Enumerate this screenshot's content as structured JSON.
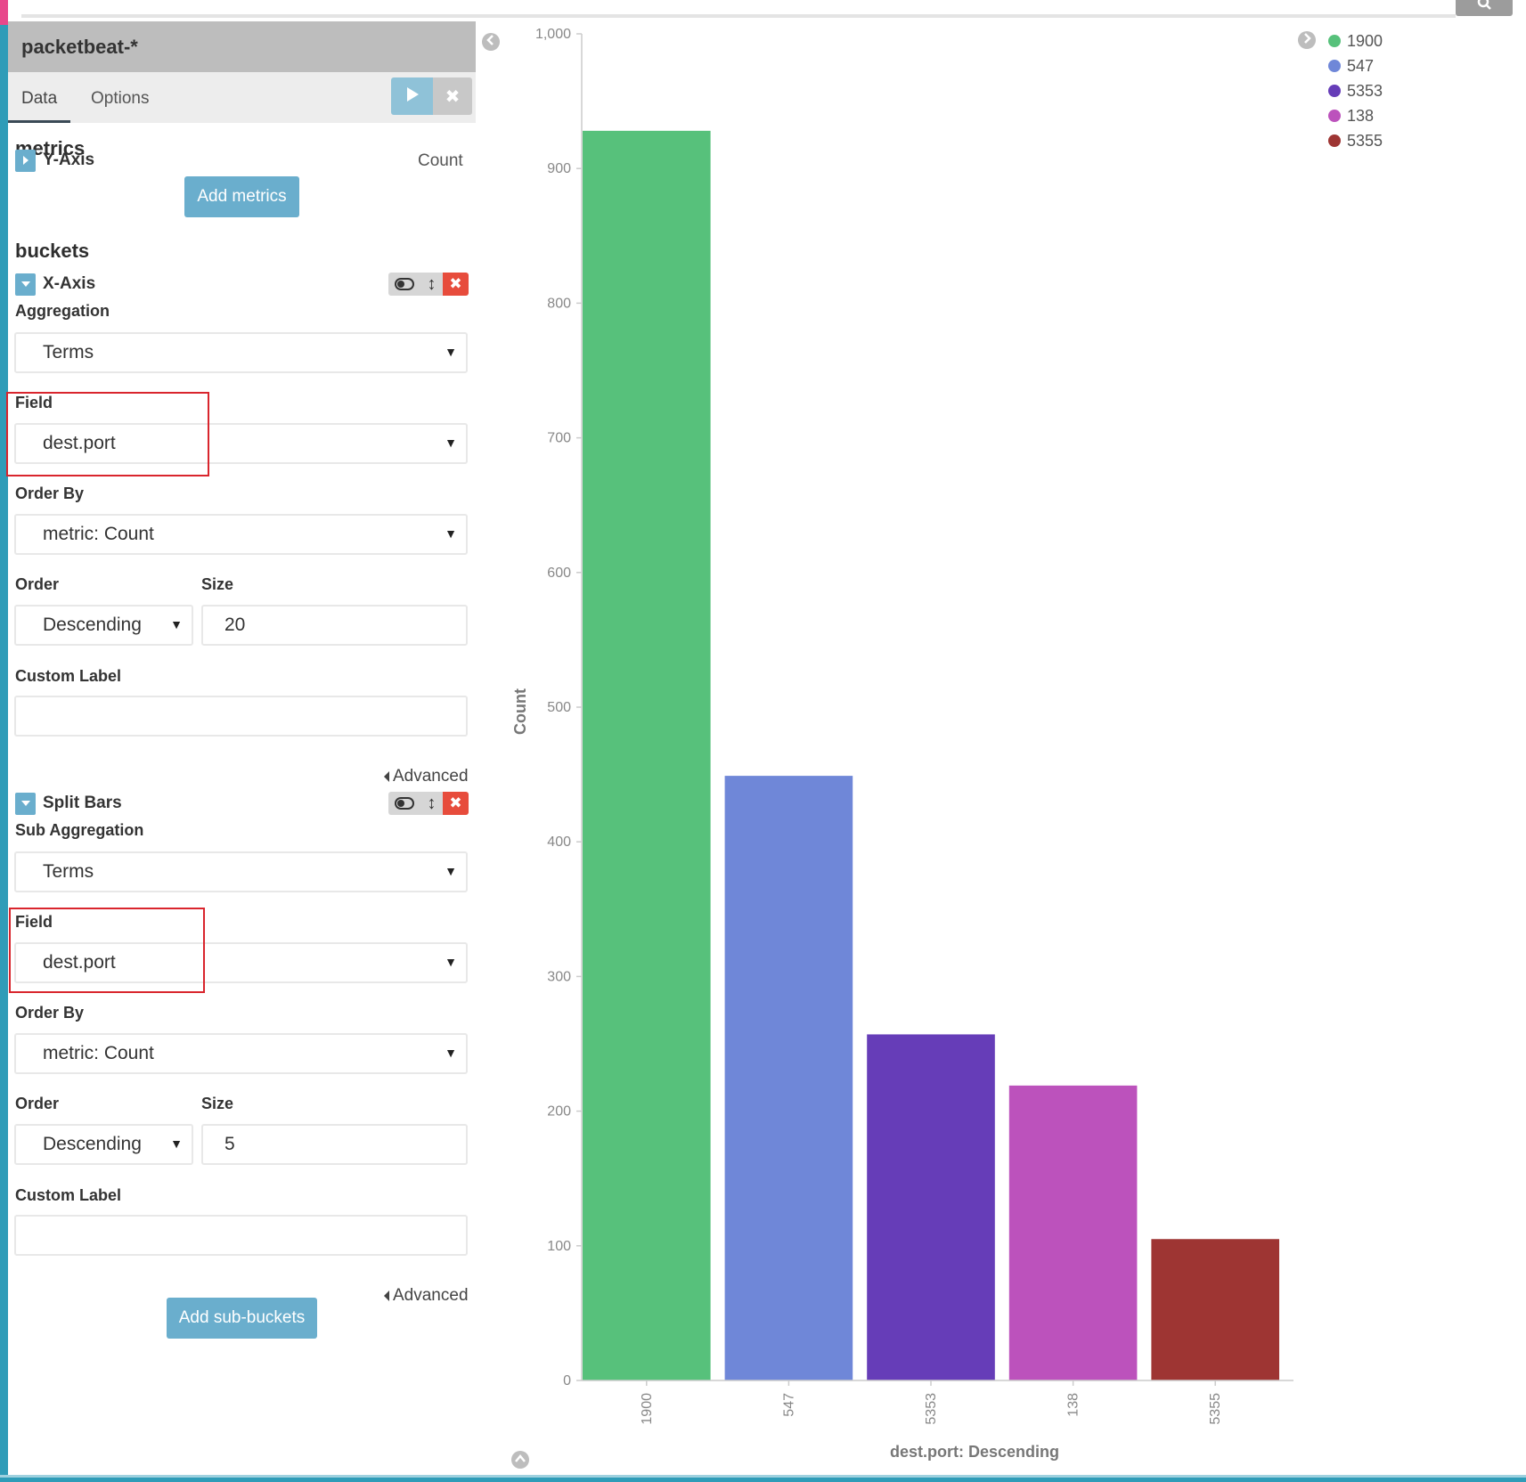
{
  "index_pattern": "packetbeat-*",
  "tabs": [
    {
      "label": "Data",
      "active": true
    },
    {
      "label": "Options",
      "active": false
    }
  ],
  "metrics": {
    "title": "metrics",
    "y_axis_label": "Y-Axis",
    "y_axis_value": "Count",
    "add_button": "Add metrics"
  },
  "buckets": {
    "title": "buckets",
    "x_axis": {
      "title": "X-Axis",
      "aggregation_label": "Aggregation",
      "aggregation_value": "Terms",
      "field_label": "Field",
      "field_value": "dest.port",
      "order_by_label": "Order By",
      "order_by_value": "metric: Count",
      "order_label": "Order",
      "order_value": "Descending",
      "size_label": "Size",
      "size_value": "20",
      "custom_label_label": "Custom Label",
      "custom_label_value": "",
      "advanced_link": "Advanced"
    },
    "split_bars": {
      "title": "Split Bars",
      "aggregation_label": "Sub Aggregation",
      "aggregation_value": "Terms",
      "field_label": "Field",
      "field_value": "dest.port",
      "order_by_label": "Order By",
      "order_by_value": "metric: Count",
      "order_label": "Order",
      "order_value": "Descending",
      "size_label": "Size",
      "size_value": "5",
      "custom_label_label": "Custom Label",
      "custom_label_value": "",
      "advanced_link": "Advanced"
    },
    "add_sub_buckets_button": "Add sub-buckets"
  },
  "icons": {
    "search": "search-icon",
    "play": "play-icon",
    "discard": "close-icon",
    "collapse_sidebar": "chevron-left-icon",
    "legend_toggle": "chevron-right-icon",
    "spy_toggle": "chevron-up-icon"
  },
  "colors": {
    "accent": "#6aaecd",
    "remove": "#e74c3c",
    "highlight_box": "#d9252d"
  },
  "chart_data": {
    "type": "bar",
    "categories": [
      "1900",
      "547",
      "5353",
      "138",
      "5355"
    ],
    "values": [
      928,
      449,
      257,
      219,
      105
    ],
    "colors": [
      "#57c17b",
      "#6f87d8",
      "#663db8",
      "#bc52bc",
      "#9e3533"
    ],
    "ylabel": "Count",
    "xlabel": "dest.port: Descending",
    "ylim": [
      0,
      1000
    ],
    "yticks": [
      0,
      100,
      200,
      300,
      400,
      500,
      600,
      700,
      800,
      900,
      1000
    ],
    "ytick_labels": [
      "0",
      "100",
      "200",
      "300",
      "400",
      "500",
      "600",
      "700",
      "800",
      "900",
      "1,000"
    ],
    "legend": [
      "1900",
      "547",
      "5353",
      "138",
      "5355"
    ],
    "legend_position": "top-right",
    "grid": false
  }
}
